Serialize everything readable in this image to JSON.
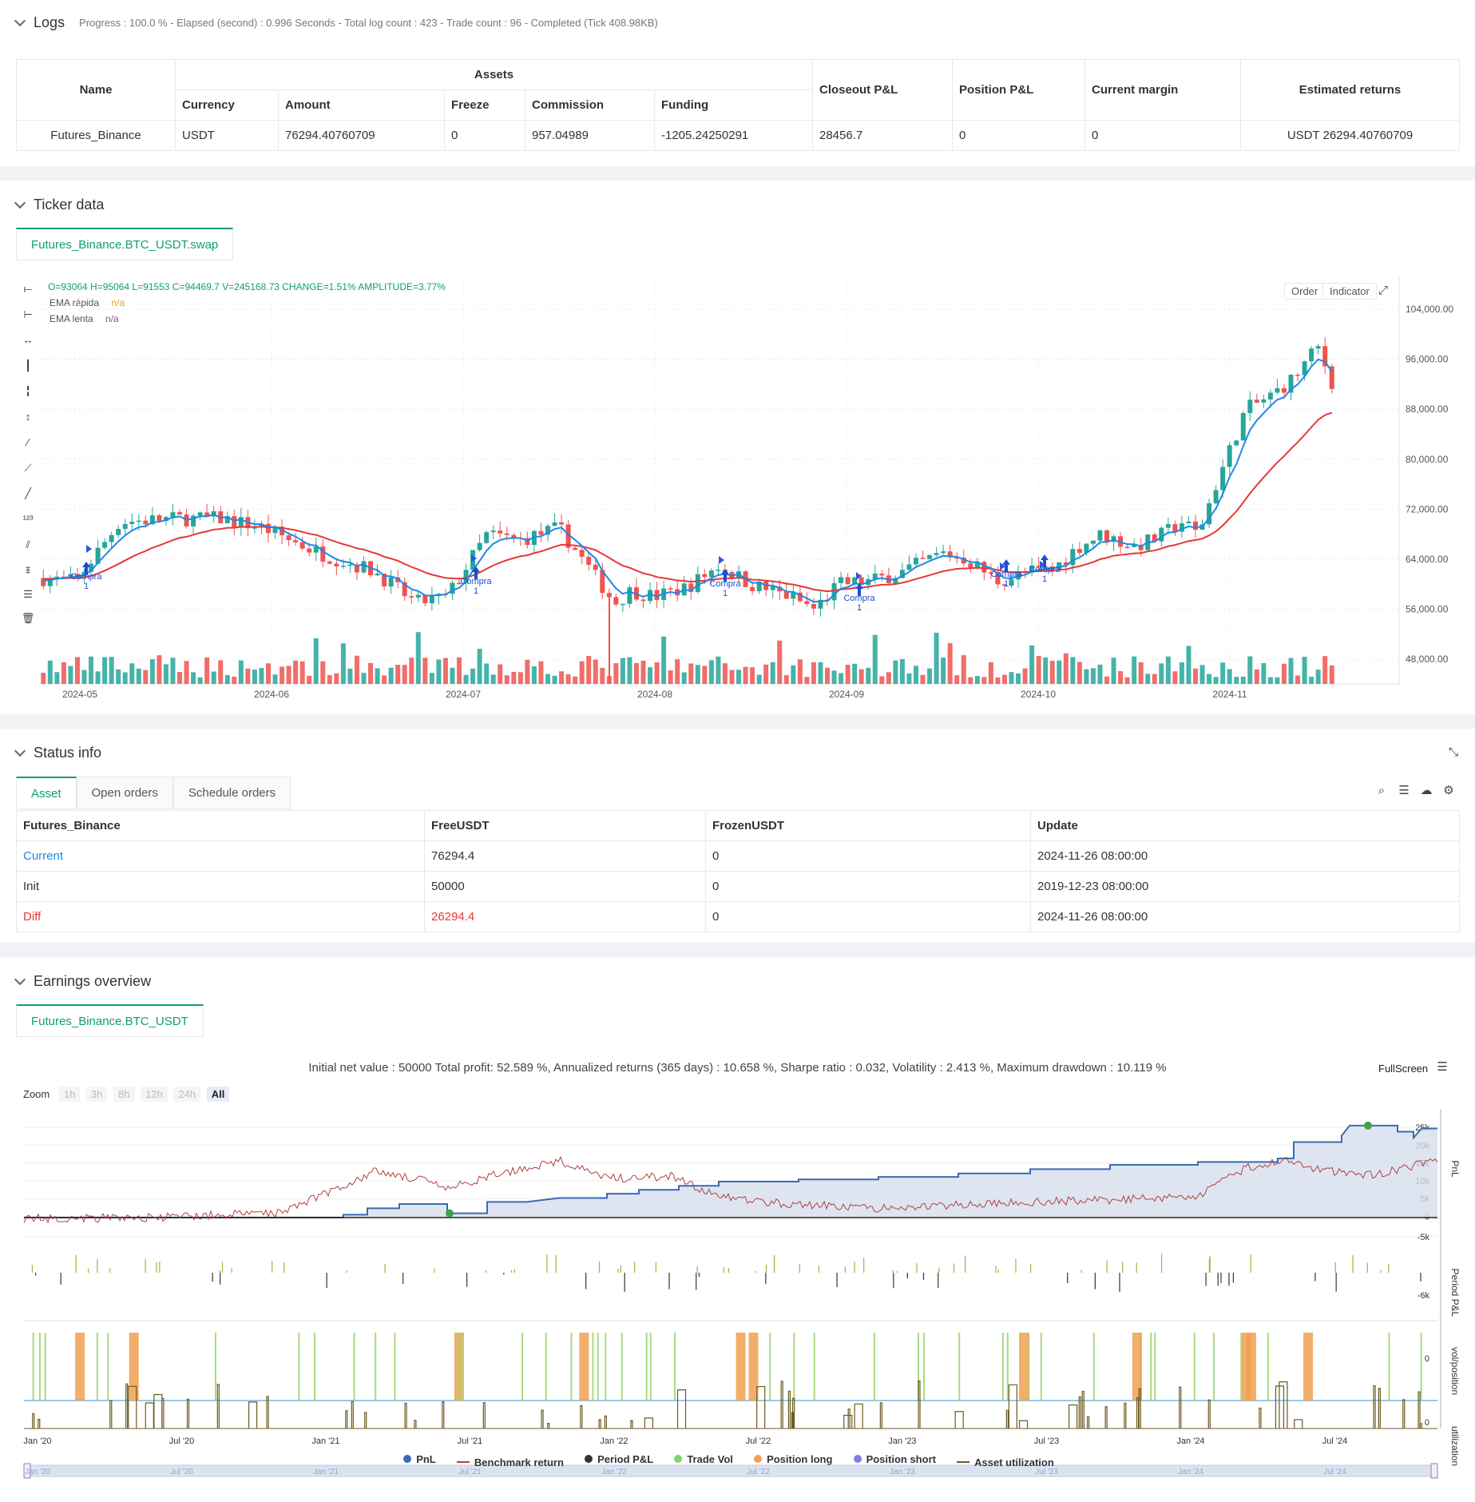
{
  "logs": {
    "title": "Logs",
    "info": "Progress : 100.0 % - Elapsed (second) : 0.996 Seconds - Total log count : 423 - Trade count : 96 - Completed (Tick 408.98KB)",
    "headers": {
      "name": "Name",
      "assets": "Assets",
      "currency": "Currency",
      "amount": "Amount",
      "freeze": "Freeze",
      "commission": "Commission",
      "funding": "Funding",
      "closeout": "Closeout P&L",
      "position": "Position P&L",
      "margin": "Current margin",
      "estimated": "Estimated returns"
    },
    "row": {
      "name": "Futures_Binance",
      "currency": "USDT",
      "amount": "76294.40760709",
      "freeze": "0",
      "commission": "957.04989",
      "funding": "-1205.24250291",
      "closeout": "28456.7",
      "position": "0",
      "margin": "0",
      "estimated": "USDT 26294.40760709"
    }
  },
  "ticker": {
    "title": "Ticker data",
    "tab": "Futures_Binance.BTC_USDT.swap",
    "ohlc": "O=93064 H=95064 L=91553 C=94469.7 V=245168.73 CHANGE=1.51% AMPLITUDE=3.77%",
    "legend": [
      {
        "name": "EMA rápida",
        "value": "n/a"
      },
      {
        "name": "EMA lenta",
        "value": "n/a"
      }
    ],
    "order_btn": "Order",
    "indicator_btn": "Indicator",
    "y_ticks": [
      "104,000.00",
      "96,000.00",
      "88,000.00",
      "80,000.00",
      "72,000.00",
      "64,000.00",
      "56,000.00",
      "48,000.00"
    ],
    "x_ticks": [
      "2024-05",
      "2024-06",
      "2024-07",
      "2024-08",
      "2024-09",
      "2024-10",
      "2024-11"
    ],
    "signal_label": "Compra",
    "signal_qty": "1"
  },
  "status": {
    "title": "Status info",
    "tabs": [
      "Asset",
      "Open orders",
      "Schedule orders"
    ],
    "headers": [
      "Futures_Binance",
      "FreeUSDT",
      "FrozenUSDT",
      "Update"
    ],
    "rows": [
      {
        "label": "Current",
        "free": "76294.4",
        "frozen": "0",
        "update": "2024-11-26 08:00:00"
      },
      {
        "label": "Init",
        "free": "50000",
        "frozen": "0",
        "update": "2019-12-23 08:00:00"
      },
      {
        "label": "Diff",
        "free": "26294.4",
        "frozen": "0",
        "update": "2024-11-26 08:00:00"
      }
    ]
  },
  "earnings": {
    "title": "Earnings overview",
    "tab": "Futures_Binance.BTC_USDT",
    "summary": "Initial net value : 50000 Total profit: 52.589 %, Annualized returns (365 days) : 10.658 %, Sharpe ratio : 0.032, Volatility : 2.413 %, Maximum drawdown : 10.119 %",
    "fullscreen": "FullScreen",
    "zoom_label": "Zoom",
    "zoom": [
      "1h",
      "3h",
      "8h",
      "12h",
      "24h",
      "All"
    ],
    "pnl_ticks": [
      "25k",
      "20k",
      "15k",
      "10k",
      "5k",
      "0",
      "-5k"
    ],
    "axis_labels": [
      "PnL",
      "Period P&L",
      "vol/position",
      "utilization"
    ],
    "period_tick": "-6k",
    "zero": "0",
    "x_ticks": [
      "Jan '20",
      "Jul '20",
      "Jan '21",
      "Jul '21",
      "Jan '22",
      "Jul '22",
      "Jan '23",
      "Jul '23",
      "Jan '24",
      "Jul '24"
    ],
    "legend": [
      {
        "name": "PnL",
        "color": "#3a6ab0",
        "kind": "dot"
      },
      {
        "name": "Benchmark return",
        "color": "#b04040",
        "kind": "line"
      },
      {
        "name": "Period P&L",
        "color": "#333333",
        "kind": "dot"
      },
      {
        "name": "Trade Vol",
        "color": "#7ed66a",
        "kind": "dot"
      },
      {
        "name": "Position long",
        "color": "#f0a050",
        "kind": "dot"
      },
      {
        "name": "Position short",
        "color": "#8080e0",
        "kind": "dot"
      },
      {
        "name": "Asset utilization",
        "color": "#6b5b1e",
        "kind": "line"
      }
    ]
  },
  "colors": {
    "up": "#26a69a",
    "down": "#ef5350",
    "ema_fast": "#1e88e5",
    "ema_slow": "#e53935",
    "accent": "#0e9f6e"
  }
}
